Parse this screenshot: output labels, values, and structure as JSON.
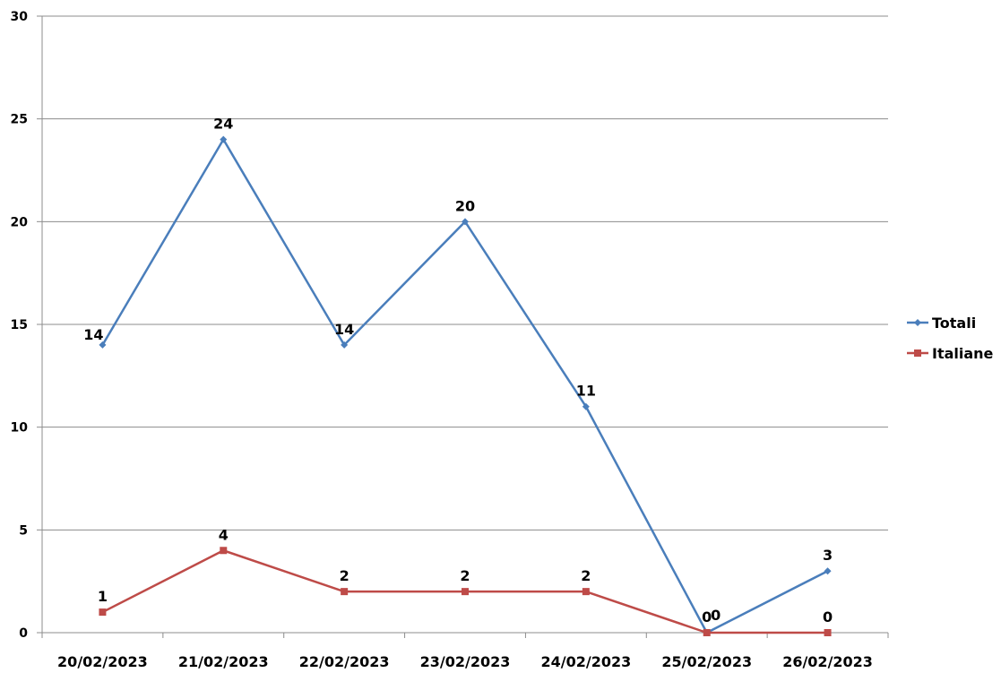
{
  "chart_data": {
    "type": "line",
    "categories": [
      "20/02/2023",
      "21/02/2023",
      "22/02/2023",
      "23/02/2023",
      "24/02/2023",
      "25/02/2023",
      "26/02/2023"
    ],
    "series": [
      {
        "name": "Totali",
        "values": [
          14,
          24,
          14,
          20,
          11,
          0,
          3
        ],
        "color": "#4a7ebb",
        "marker": "diamond"
      },
      {
        "name": "Italiane",
        "values": [
          1,
          4,
          2,
          2,
          2,
          0,
          0
        ],
        "color": "#be4b48",
        "marker": "square"
      }
    ],
    "ylim": [
      0,
      30
    ],
    "yticks": [
      0,
      5,
      10,
      15,
      20,
      25,
      30
    ],
    "grid": true,
    "legend": "right",
    "title": "",
    "xlabel": "",
    "ylabel": ""
  }
}
